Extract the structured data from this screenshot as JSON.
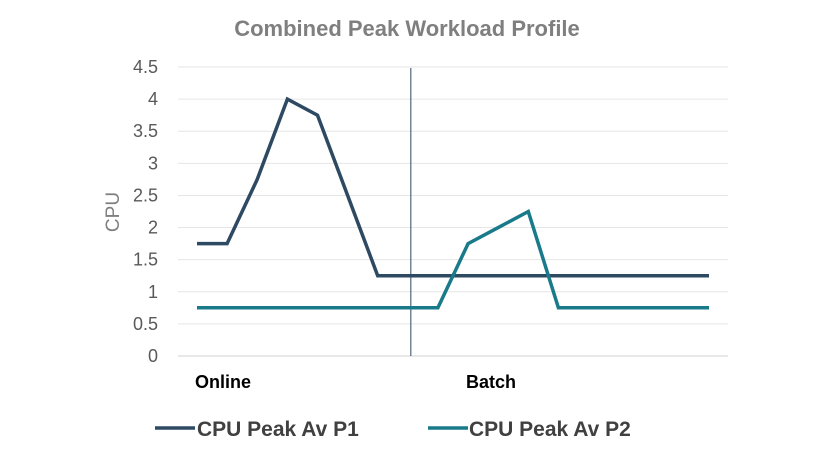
{
  "chart_data": {
    "type": "line",
    "title": "Combined Peak Workload Profile",
    "xlabel": "",
    "ylabel": "CPU",
    "ylim": [
      0,
      4.5
    ],
    "yticks": [
      "0",
      "0.5",
      "1",
      "1.5",
      "2",
      "2.5",
      "3",
      "3.5",
      "4",
      "4.5"
    ],
    "grid": true,
    "legend_position": "bottom",
    "x": [
      1,
      2,
      3,
      4,
      5,
      6,
      7,
      8,
      9,
      10,
      11,
      12,
      13,
      14,
      15,
      16,
      17,
      18
    ],
    "categories": [
      {
        "label": "Online",
        "at": 1
      },
      {
        "label": "Batch",
        "at": 10
      }
    ],
    "divider_after_x": 8.1,
    "series": [
      {
        "name": "CPU Peak Av P1",
        "color": "#2e4a62",
        "values": [
          1.75,
          1.75,
          2.75,
          4.0,
          3.75,
          2.5,
          1.25,
          1.25,
          1.25,
          1.25,
          1.25,
          1.25,
          1.25,
          1.25,
          1.25,
          1.25,
          1.25,
          1.25
        ]
      },
      {
        "name": "CPU Peak Av P2",
        "color": "#197a8a",
        "values": [
          0.75,
          0.75,
          0.75,
          0.75,
          0.75,
          0.75,
          0.75,
          0.75,
          0.75,
          1.75,
          2.0,
          2.25,
          0.75,
          0.75,
          0.75,
          0.75,
          0.75,
          0.75
        ]
      }
    ]
  }
}
